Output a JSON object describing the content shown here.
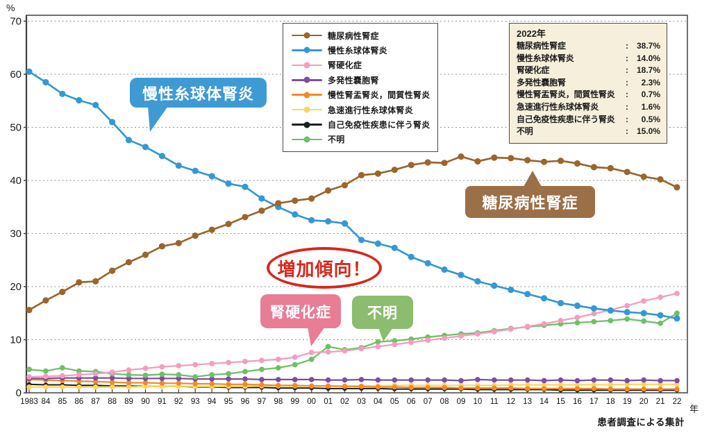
{
  "chart_data": {
    "type": "line",
    "unit_y": "%",
    "unit_x": "年",
    "source_note": "患者調査による集計",
    "ylim": [
      0,
      70
    ],
    "yticks": [
      0,
      10,
      20,
      30,
      40,
      50,
      60,
      70
    ],
    "grid": "horizontal-dashed",
    "legend_position": "top-center-box",
    "x": [
      "1983",
      "84",
      "85",
      "86",
      "87",
      "88",
      "89",
      "90",
      "91",
      "92",
      "93",
      "94",
      "95",
      "96",
      "97",
      "98",
      "99",
      "00",
      "01",
      "02",
      "03",
      "04",
      "05",
      "06",
      "07",
      "08",
      "09",
      "10",
      "11",
      "12",
      "13",
      "14",
      "15",
      "16",
      "17",
      "18",
      "19",
      "20",
      "21",
      "22"
    ],
    "series": [
      {
        "name": "糖尿病性腎症",
        "color": "#9a662d",
        "values": [
          15.6,
          17.4,
          19.0,
          20.8,
          21.0,
          23.0,
          24.6,
          26.0,
          27.6,
          28.2,
          29.6,
          30.7,
          31.8,
          33.1,
          34.3,
          35.7,
          36.2,
          36.6,
          38.1,
          39.1,
          41.0,
          41.3,
          42.0,
          42.9,
          43.4,
          43.3,
          44.5,
          43.6,
          44.3,
          44.2,
          43.8,
          43.5,
          43.7,
          43.2,
          42.5,
          42.3,
          41.6,
          40.7,
          40.2,
          38.7
        ]
      },
      {
        "name": "慢性糸球体腎炎",
        "color": "#3598d3",
        "values": [
          60.5,
          58.5,
          56.3,
          55.1,
          54.2,
          51.0,
          47.6,
          46.3,
          44.6,
          42.8,
          41.8,
          40.8,
          39.4,
          38.8,
          36.6,
          35.0,
          33.6,
          32.5,
          32.3,
          31.9,
          28.8,
          28.1,
          27.3,
          25.6,
          24.4,
          23.2,
          22.2,
          21.0,
          20.2,
          19.4,
          18.6,
          17.8,
          16.9,
          16.4,
          15.9,
          15.5,
          15.2,
          15.0,
          14.6,
          14.0
        ]
      },
      {
        "name": "腎硬化症",
        "color": "#f49dbe",
        "values": [
          3.0,
          3.1,
          3.2,
          3.4,
          3.6,
          3.9,
          4.3,
          4.6,
          4.9,
          5.1,
          5.3,
          5.5,
          5.7,
          5.9,
          6.1,
          6.3,
          6.7,
          7.6,
          7.7,
          7.9,
          8.3,
          8.7,
          9.1,
          9.5,
          9.9,
          10.3,
          10.7,
          11.1,
          11.5,
          12.0,
          12.5,
          13.0,
          13.6,
          14.2,
          14.9,
          15.6,
          16.4,
          17.3,
          18.0,
          18.7
        ]
      },
      {
        "name": "多発性嚢胞腎",
        "color": "#7c4da0",
        "values": [
          2.7,
          2.7,
          2.8,
          2.8,
          2.8,
          2.8,
          2.7,
          2.7,
          2.7,
          2.7,
          2.6,
          2.6,
          2.6,
          2.6,
          2.5,
          2.5,
          2.5,
          2.5,
          2.4,
          2.4,
          2.5,
          2.4,
          2.4,
          2.4,
          2.4,
          2.4,
          2.3,
          2.5,
          2.4,
          2.4,
          2.4,
          2.3,
          2.4,
          2.3,
          2.4,
          2.4,
          2.3,
          2.4,
          2.3,
          2.3
        ]
      },
      {
        "name": "慢性腎盂腎炎，間質性腎炎",
        "color": "#f08b25",
        "values": [
          2.5,
          2.4,
          2.3,
          2.2,
          2.1,
          2.0,
          1.9,
          1.9,
          1.8,
          1.8,
          1.7,
          1.7,
          1.6,
          1.6,
          1.5,
          1.4,
          1.4,
          1.3,
          1.3,
          1.2,
          1.2,
          1.1,
          1.1,
          1.0,
          1.0,
          1.0,
          0.9,
          0.9,
          0.9,
          0.9,
          0.8,
          0.8,
          0.8,
          0.8,
          0.8,
          0.7,
          0.7,
          0.7,
          0.7,
          0.7
        ]
      },
      {
        "name": "急速進行性糸球体腎炎",
        "color": "#f9d75f",
        "values": [
          1.1,
          1.1,
          1.1,
          1.1,
          1.1,
          1.1,
          1.1,
          1.2,
          1.2,
          1.2,
          1.2,
          1.2,
          1.2,
          1.2,
          1.3,
          1.3,
          1.3,
          1.3,
          1.3,
          1.3,
          1.3,
          1.3,
          1.4,
          1.4,
          1.4,
          1.4,
          1.4,
          1.4,
          1.4,
          1.5,
          1.5,
          1.5,
          1.5,
          1.5,
          1.5,
          1.5,
          1.6,
          1.6,
          1.6,
          1.6
        ]
      },
      {
        "name": "自己免疫性疾患に伴う腎炎",
        "color": "#1e1e1e",
        "values": [
          1.6,
          1.5,
          1.5,
          1.4,
          1.4,
          1.3,
          1.3,
          1.2,
          1.2,
          1.2,
          1.1,
          1.1,
          1.0,
          1.0,
          1.0,
          0.9,
          0.9,
          0.9,
          0.8,
          0.8,
          0.8,
          0.8,
          0.7,
          0.7,
          0.7,
          0.7,
          0.7,
          0.6,
          0.6,
          0.6,
          0.6,
          0.6,
          0.5,
          0.5,
          0.5,
          0.5,
          0.5,
          0.5,
          0.5,
          0.5
        ]
      },
      {
        "name": "不明",
        "color": "#6ec066",
        "values": [
          4.4,
          4.1,
          4.7,
          4.1,
          4.0,
          3.6,
          3.4,
          3.3,
          3.5,
          3.4,
          3.0,
          3.4,
          3.6,
          4.0,
          4.4,
          4.7,
          5.3,
          6.3,
          8.7,
          8.1,
          8.5,
          9.6,
          9.8,
          10.1,
          10.5,
          10.8,
          11.1,
          11.3,
          11.7,
          12.1,
          12.4,
          12.7,
          13.0,
          13.2,
          13.4,
          13.6,
          13.9,
          13.5,
          13.1,
          15.0
        ]
      }
    ],
    "z_order": [
      6,
      5,
      4,
      3,
      7,
      2,
      1,
      0
    ]
  },
  "info_box": {
    "title": "2022年",
    "separator": ":",
    "rows": [
      {
        "label": "糖尿病性腎症",
        "value": "38.7%"
      },
      {
        "label": "慢性糸球体腎炎",
        "value": "14.0%"
      },
      {
        "label": "腎硬化症",
        "value": "18.7%"
      },
      {
        "label": "多発性嚢胞腎",
        "value": "2.3%"
      },
      {
        "label": "慢性腎盂腎炎，間質性腎炎",
        "value": "0.7%"
      },
      {
        "label": "急速進行性糸球体腎炎",
        "value": "1.6%"
      },
      {
        "label": "自己免疫性疾患に伴う腎炎",
        "value": "0.5%"
      },
      {
        "label": "不明",
        "value": "15.0%"
      }
    ]
  },
  "annotations": {
    "trend": "増加傾向！",
    "bubble_cgn": "慢性糸球体腎炎",
    "bubble_dm": "糖尿病性腎症",
    "bubble_ns": "腎硬化症",
    "bubble_unknown": "不明"
  }
}
